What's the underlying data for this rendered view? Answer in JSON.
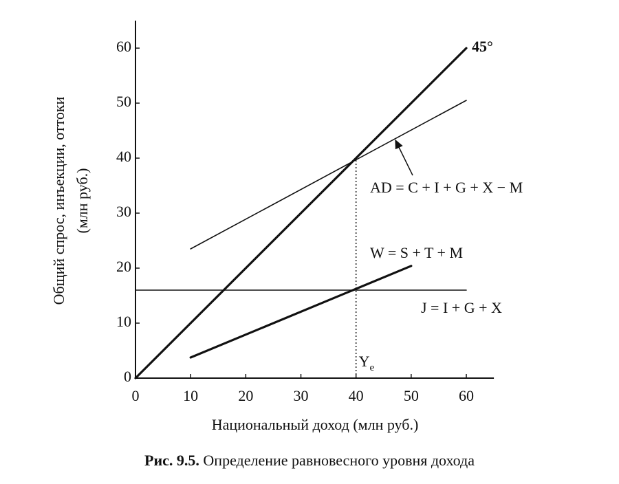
{
  "chart_data": {
    "type": "line",
    "caption_label": "Рис. 9.5.",
    "caption": "Определение равновесного уровня дохода",
    "x_label": "Национальный доход (млн руб.)",
    "y_label": [
      "Общий спрос, инъекции, оттоки",
      "(млн руб.)"
    ],
    "xlim": [
      0,
      65
    ],
    "ylim": [
      0,
      65
    ],
    "xticks": [
      0,
      10,
      20,
      30,
      40,
      50,
      60
    ],
    "yticks": [
      0,
      10,
      20,
      30,
      40,
      50,
      60
    ],
    "grid": false,
    "series": [
      {
        "name": "45°",
        "color": "#111111",
        "line_width": 3.2,
        "x": [
          0,
          60
        ],
        "values": [
          0,
          60
        ]
      },
      {
        "name": "AD = C + I + G + X − M",
        "color": "#111111",
        "line_width": 1.6,
        "x": [
          10,
          60
        ],
        "values": [
          23.5,
          50.5
        ]
      },
      {
        "name": "W = S + T + M",
        "color": "#111111",
        "line_width": 3.2,
        "x": [
          10,
          50
        ],
        "values": [
          3.75,
          20.4
        ]
      },
      {
        "name": "J = I + G + X",
        "color": "#111111",
        "line_width": 1.6,
        "x": [
          0,
          60
        ],
        "values": [
          16,
          16
        ]
      }
    ],
    "equilibrium": {
      "x": 40,
      "y": 40,
      "label": "Y",
      "label_sub": "e"
    }
  }
}
